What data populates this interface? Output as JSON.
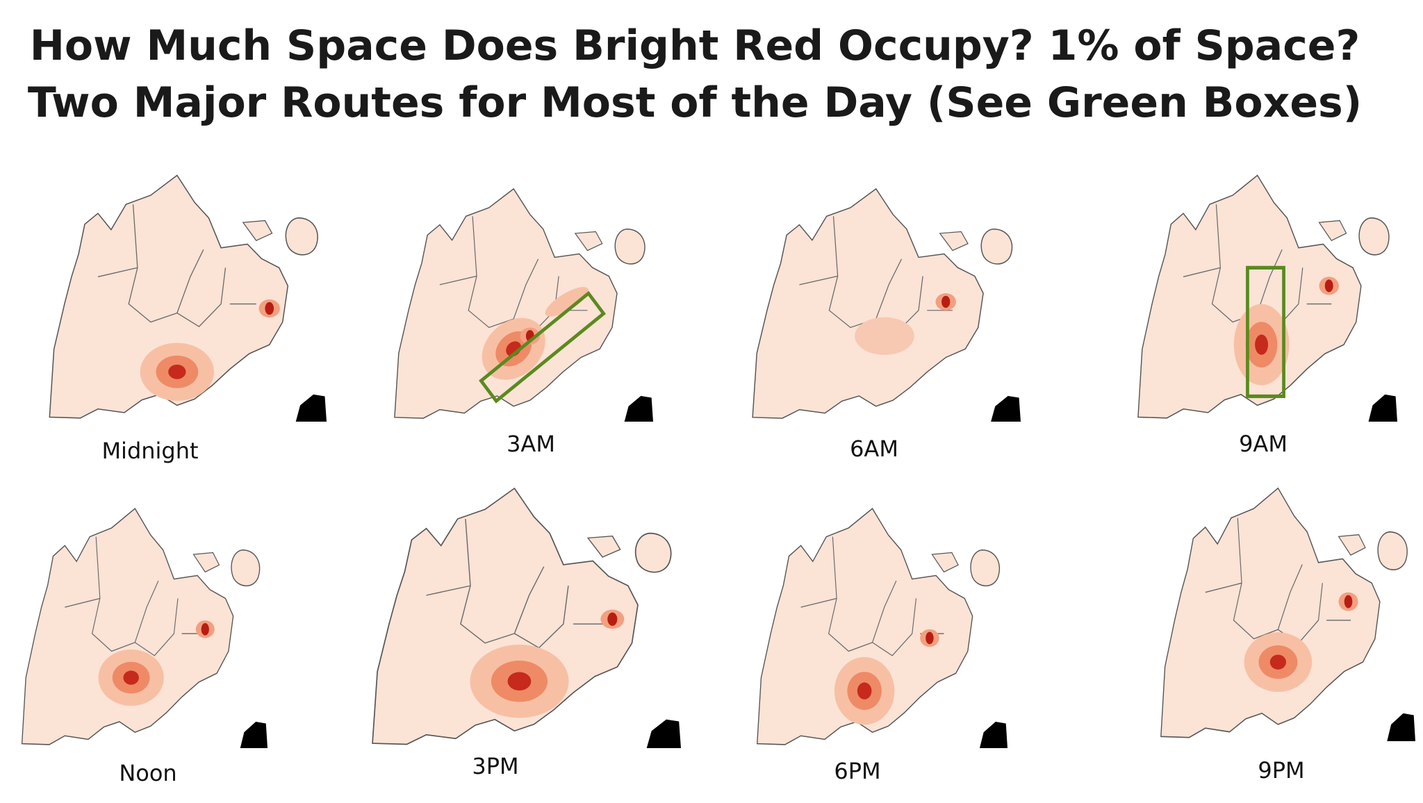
{
  "title": {
    "line1": "How Much Space Does Bright Red Occupy? 1% of Space?",
    "line2": "Two Major Routes for Most of the Day (See Green Boxes)"
  },
  "panels": [
    {
      "label": "Midnight"
    },
    {
      "label": "3AM"
    },
    {
      "label": "6AM"
    },
    {
      "label": "9AM"
    },
    {
      "label": "Noon"
    },
    {
      "label": "3PM"
    },
    {
      "label": "6PM"
    },
    {
      "label": "9PM"
    }
  ]
}
